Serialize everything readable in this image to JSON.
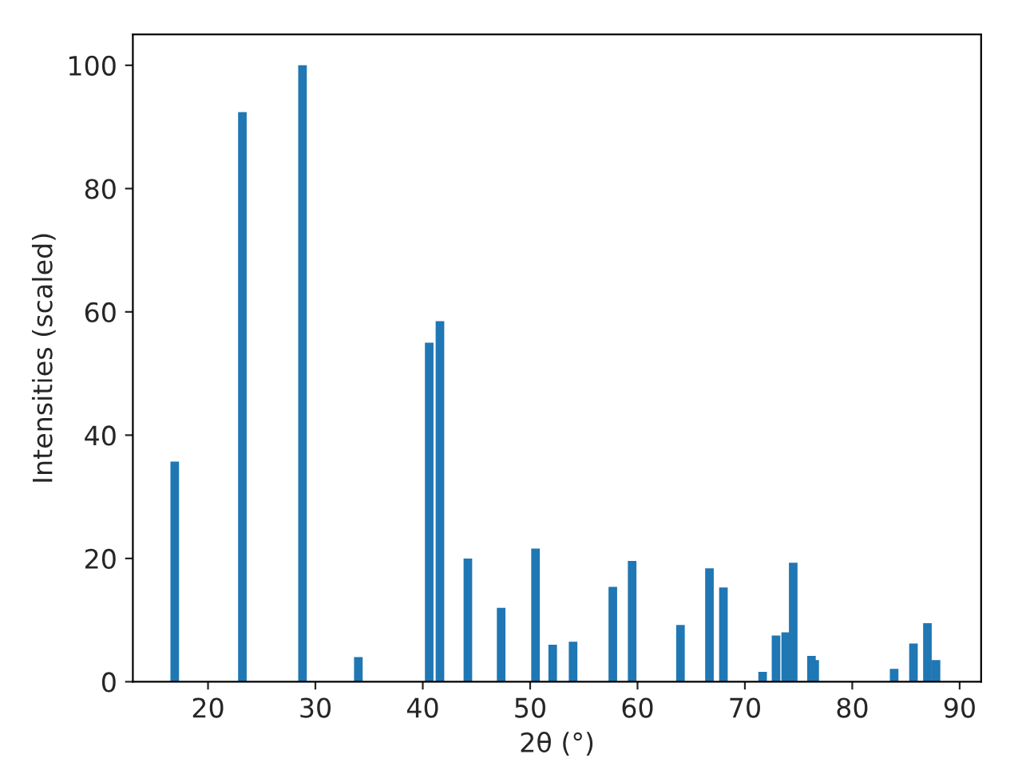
{
  "chart_data": {
    "type": "bar",
    "xlabel": "2θ (°)",
    "ylabel": "Intensities (scaled)",
    "x": [
      16.9,
      23.2,
      28.8,
      34.0,
      40.6,
      41.6,
      44.2,
      47.3,
      50.5,
      52.1,
      54.0,
      57.7,
      59.5,
      64.0,
      66.7,
      68.0,
      71.65,
      72.9,
      73.8,
      74.5,
      76.2,
      76.5,
      83.9,
      85.7,
      87.0,
      87.8
    ],
    "values": [
      35.7,
      92.4,
      100,
      4.0,
      55.0,
      58.5,
      20.0,
      12.0,
      21.6,
      6.0,
      6.5,
      15.4,
      19.6,
      9.2,
      18.4,
      15.3,
      1.6,
      7.5,
      8.0,
      19.3,
      4.2,
      3.5,
      2.1,
      6.2,
      9.5,
      3.5
    ],
    "color": "#1f77b4",
    "xlim": [
      13,
      92
    ],
    "ylim": [
      0,
      105
    ],
    "xticks": [
      20,
      30,
      40,
      50,
      60,
      70,
      80,
      90
    ],
    "yticks": [
      0,
      20,
      40,
      60,
      80,
      100
    ],
    "grid": false,
    "legend": false
  }
}
